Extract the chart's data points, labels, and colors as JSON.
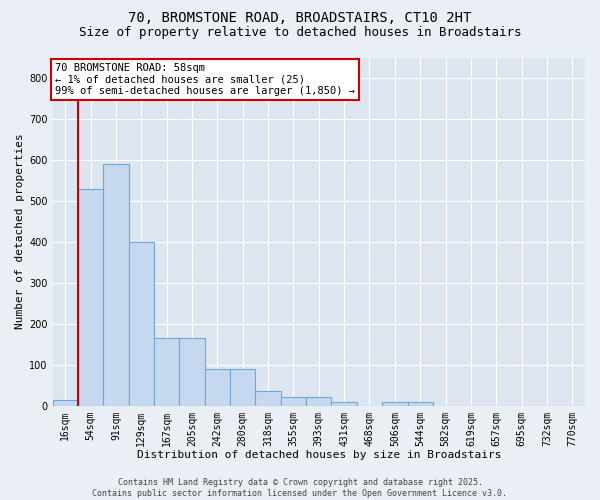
{
  "title_line1": "70, BROMSTONE ROAD, BROADSTAIRS, CT10 2HT",
  "title_line2": "Size of property relative to detached houses in Broadstairs",
  "xlabel": "Distribution of detached houses by size in Broadstairs",
  "ylabel": "Number of detached properties",
  "annotation_line1": "70 BROMSTONE ROAD: 58sqm",
  "annotation_line2": "← 1% of detached houses are smaller (25)",
  "annotation_line3": "99% of semi-detached houses are larger (1,850) →",
  "footer_line1": "Contains HM Land Registry data © Crown copyright and database right 2025.",
  "footer_line2": "Contains public sector information licensed under the Open Government Licence v3.0.",
  "bin_labels": [
    "16sqm",
    "54sqm",
    "91sqm",
    "129sqm",
    "167sqm",
    "205sqm",
    "242sqm",
    "280sqm",
    "318sqm",
    "355sqm",
    "393sqm",
    "431sqm",
    "468sqm",
    "506sqm",
    "544sqm",
    "582sqm",
    "619sqm",
    "657sqm",
    "695sqm",
    "732sqm",
    "770sqm"
  ],
  "bar_values": [
    15,
    530,
    590,
    400,
    165,
    165,
    90,
    90,
    35,
    22,
    22,
    10,
    0,
    10,
    10,
    0,
    0,
    0,
    0,
    0,
    0
  ],
  "bar_color": "#c5d8f0",
  "bar_edge_color": "#6fa8d4",
  "marker_color": "#cc0000",
  "background_color": "#eaeef5",
  "plot_bg_color": "#dde5f0",
  "grid_color": "#ffffff",
  "ylim": [
    0,
    850
  ],
  "yticks": [
    0,
    100,
    200,
    300,
    400,
    500,
    600,
    700,
    800
  ],
  "title_fontsize": 10,
  "subtitle_fontsize": 9,
  "axis_label_fontsize": 8,
  "tick_fontsize": 7,
  "annotation_fontsize": 7.5,
  "footer_fontsize": 6
}
